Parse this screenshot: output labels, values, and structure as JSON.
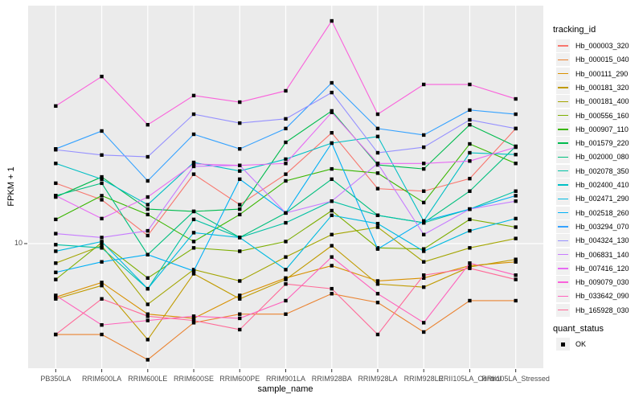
{
  "chart_data": {
    "type": "line",
    "title": "",
    "xlabel": "sample_name",
    "ylabel": "FPKM + 1",
    "yscale": "log10",
    "ytick_labels": [
      "10"
    ],
    "ytick_values": [
      10
    ],
    "grid": "major-on",
    "panel_bg": "#EBEBEB",
    "grid_color": "#FFFFFF",
    "point_marker": "black-square",
    "categories": [
      "PB350LA",
      "RRIM600LA",
      "RRIM600LE",
      "RRIM600SE",
      "RRIM600PE",
      "RRIM901LA",
      "RRIM928BA",
      "RRIM928LA",
      "RRIM928LE",
      "RRII105LA_Control",
      "RRII105LA_Stressed"
    ],
    "legend": {
      "position": "right",
      "tracking_title": "tracking_id",
      "quant_title": "quant_status",
      "quant_items": [
        {
          "label": "OK",
          "marker": "black-square"
        }
      ]
    },
    "series": [
      {
        "name": "Hb_000003_320",
        "color": "#F8766D",
        "values": [
          17.8,
          15.2,
          10.8,
          19.4,
          14.5,
          19.4,
          28.8,
          16.9,
          16.5,
          18.6,
          30.0
        ]
      },
      {
        "name": "Hb_000015_040",
        "color": "#EA8331",
        "values": [
          4.2,
          4.2,
          3.3,
          4.7,
          5.1,
          5.1,
          6.2,
          5.7,
          4.3,
          5.8,
          5.8
        ]
      },
      {
        "name": "Hb_000111_290",
        "color": "#D89000",
        "values": [
          6.0,
          6.9,
          5.1,
          4.9,
          6.1,
          7.2,
          8.1,
          7.0,
          7.2,
          8.1,
          8.4
        ]
      },
      {
        "name": "Hb_000181_320",
        "color": "#C09B00",
        "values": [
          5.9,
          6.7,
          4.0,
          7.5,
          5.9,
          7.1,
          9.8,
          6.8,
          6.6,
          8.0,
          8.6
        ]
      },
      {
        "name": "Hb_000181_400",
        "color": "#A3A500",
        "values": [
          8.3,
          9.8,
          5.6,
          7.8,
          7.0,
          8.8,
          10.9,
          11.7,
          8.4,
          9.6,
          10.5
        ]
      },
      {
        "name": "Hb_000556_160",
        "color": "#7CAE00",
        "values": [
          7.1,
          10.1,
          7.2,
          9.6,
          9.3,
          10.2,
          13.7,
          9.6,
          9.5,
          12.6,
          11.7
        ]
      },
      {
        "name": "Hb_000907_110",
        "color": "#39B600",
        "values": [
          12.6,
          15.8,
          13.2,
          10.2,
          13.2,
          18.2,
          20.4,
          19.6,
          14.8,
          25.9,
          21.5
        ]
      },
      {
        "name": "Hb_001579_220",
        "color": "#00BB4E",
        "values": [
          15.6,
          18.9,
          13.9,
          13.6,
          13.9,
          26.3,
          35.5,
          21.2,
          20.4,
          31.1,
          25.3
        ]
      },
      {
        "name": "Hb_002000_080",
        "color": "#00BF7D",
        "values": [
          15.8,
          17.8,
          9.0,
          13.6,
          10.6,
          13.4,
          18.5,
          13.1,
          12.2,
          16.5,
          25.3
        ]
      },
      {
        "name": "Hb_002078_350",
        "color": "#00C1A3",
        "values": [
          9.9,
          9.6,
          6.5,
          12.6,
          10.6,
          12.2,
          15.0,
          13.1,
          12.2,
          13.9,
          16.5
        ]
      },
      {
        "name": "Hb_002400_410",
        "color": "#00BFC4",
        "values": [
          21.5,
          18.5,
          14.5,
          21.7,
          20.0,
          22.4,
          26.1,
          27.8,
          12.4,
          23.8,
          23.4
        ]
      },
      {
        "name": "Hb_002471_290",
        "color": "#00BAE0",
        "values": [
          9.3,
          10.2,
          6.5,
          11.1,
          10.6,
          7.8,
          13.1,
          12.1,
          9.3,
          11.3,
          12.7
        ]
      },
      {
        "name": "Hb_002518_260",
        "color": "#00B0F6",
        "values": [
          7.6,
          8.4,
          9.0,
          7.7,
          18.5,
          13.4,
          26.1,
          9.5,
          12.4,
          13.9,
          15.8
        ]
      },
      {
        "name": "Hb_003294_070",
        "color": "#35A2FF",
        "values": [
          24.7,
          29.3,
          18.2,
          28.4,
          24.7,
          30.0,
          46.4,
          30.0,
          28.2,
          35.8,
          34.4
        ]
      },
      {
        "name": "Hb_004324_130",
        "color": "#9590FF",
        "values": [
          24.5,
          23.3,
          22.9,
          34.4,
          31.6,
          32.9,
          42.3,
          23.8,
          25.1,
          32.6,
          30.0
        ]
      },
      {
        "name": "Hb_006831_140",
        "color": "#C77CFF",
        "values": [
          11.0,
          10.6,
          11.3,
          20.9,
          21.1,
          13.4,
          15.0,
          21.5,
          10.9,
          13.9,
          15.0
        ]
      },
      {
        "name": "Hb_007416_120",
        "color": "#E76BF3",
        "values": [
          15.8,
          12.7,
          15.6,
          21.4,
          21.1,
          21.5,
          35.0,
          21.5,
          21.5,
          22.0,
          25.1
        ]
      },
      {
        "name": "Hb_009079_030",
        "color": "#FA62DB",
        "values": [
          37.2,
          49.3,
          31.1,
          41.1,
          38.6,
          43.0,
          83.8,
          34.4,
          45.7,
          45.7,
          39.8
        ]
      },
      {
        "name": "Hb_033642_090",
        "color": "#FF62BC",
        "values": [
          6.1,
          4.6,
          4.8,
          5.0,
          4.9,
          5.8,
          8.8,
          6.2,
          4.7,
          8.3,
          7.4
        ]
      },
      {
        "name": "Hb_165928_030",
        "color": "#FF6A98",
        "values": [
          4.2,
          5.9,
          5.0,
          4.8,
          4.4,
          6.8,
          6.5,
          4.2,
          7.4,
          7.9,
          7.1
        ]
      }
    ]
  }
}
